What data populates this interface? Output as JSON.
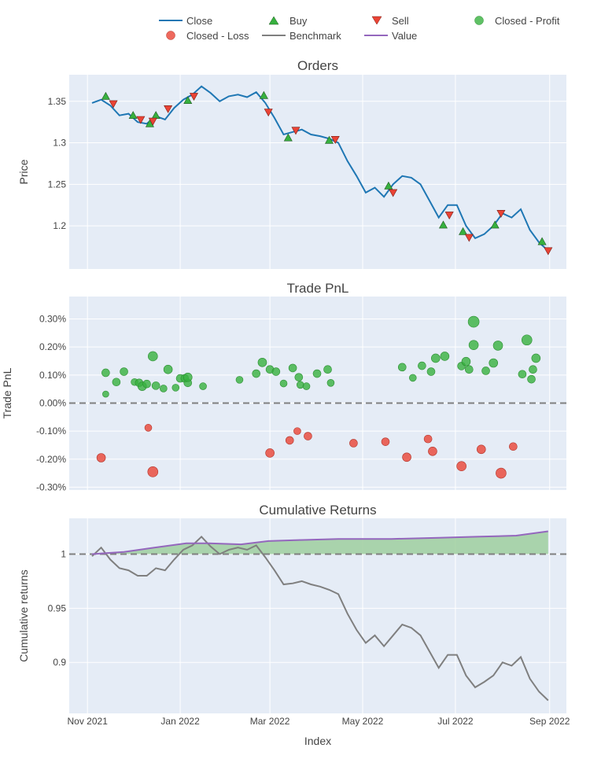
{
  "legend": {
    "close": "Close",
    "buy": "Buy",
    "sell": "Sell",
    "closed_profit": "Closed - Profit",
    "closed_loss": "Closed - Loss",
    "benchmark": "Benchmark",
    "value": "Value"
  },
  "colors": {
    "close": "#1f77b4",
    "buy": "#37b13f",
    "sell": "#ea4335",
    "profit": "#37b13f",
    "loss": "#ea4335",
    "benchmark": "#7f7f7f",
    "value": "#9467bd",
    "plot_bg": "#e5ecf6",
    "fill": "#9fcf9f"
  },
  "xaxis": {
    "title": "Index",
    "ticks": [
      {
        "date": "2021-11-01",
        "label": "Nov 2021"
      },
      {
        "date": "2022-01-01",
        "label": "Jan 2022"
      },
      {
        "date": "2022-03-01",
        "label": "Mar 2022"
      },
      {
        "date": "2022-05-01",
        "label": "May 2022"
      },
      {
        "date": "2022-07-01",
        "label": "Jul 2022"
      },
      {
        "date": "2022-09-01",
        "label": "Sep 2022"
      }
    ]
  },
  "chart_data": [
    {
      "type": "line",
      "title": "Orders",
      "ylabel": "Price",
      "ylim": [
        1.148,
        1.382
      ],
      "yticks": [
        {
          "value": 1.2,
          "label": "1.2"
        },
        {
          "value": 1.25,
          "label": "1.25"
        },
        {
          "value": 1.3,
          "label": "1.3"
        },
        {
          "value": 1.35,
          "label": "1.35"
        }
      ],
      "series": [
        {
          "name": "Close",
          "kind": "line",
          "color": "#1f77b4",
          "x": [
            "2021-11-04",
            "2021-11-10",
            "2021-11-16",
            "2021-11-22",
            "2021-11-28",
            "2021-12-04",
            "2021-12-10",
            "2021-12-16",
            "2021-12-22",
            "2021-12-28",
            "2022-01-03",
            "2022-01-09",
            "2022-01-15",
            "2022-01-21",
            "2022-01-27",
            "2022-02-02",
            "2022-02-08",
            "2022-02-14",
            "2022-02-20",
            "2022-02-26",
            "2022-03-04",
            "2022-03-10",
            "2022-03-16",
            "2022-03-22",
            "2022-03-28",
            "2022-04-03",
            "2022-04-09",
            "2022-04-15",
            "2022-04-21",
            "2022-04-27",
            "2022-05-03",
            "2022-05-09",
            "2022-05-15",
            "2022-05-21",
            "2022-05-27",
            "2022-06-02",
            "2022-06-08",
            "2022-06-14",
            "2022-06-20",
            "2022-06-26",
            "2022-07-02",
            "2022-07-08",
            "2022-07-14",
            "2022-07-20",
            "2022-07-26",
            "2022-08-01",
            "2022-08-07",
            "2022-08-13",
            "2022-08-19",
            "2022-08-25",
            "2022-08-31"
          ],
          "y": [
            1.348,
            1.352,
            1.345,
            1.333,
            1.335,
            1.325,
            1.323,
            1.332,
            1.328,
            1.342,
            1.352,
            1.358,
            1.368,
            1.36,
            1.35,
            1.356,
            1.358,
            1.355,
            1.361,
            1.348,
            1.33,
            1.31,
            1.313,
            1.316,
            1.31,
            1.308,
            1.305,
            1.3,
            1.278,
            1.26,
            1.24,
            1.246,
            1.235,
            1.25,
            1.26,
            1.258,
            1.25,
            1.23,
            1.21,
            1.225,
            1.225,
            1.2,
            1.185,
            1.19,
            1.2,
            1.215,
            1.21,
            1.22,
            1.195,
            1.18,
            1.17
          ]
        },
        {
          "name": "Buy",
          "kind": "markers",
          "symbol": "triangle-up",
          "color": "#37b13f",
          "x": [
            "2021-11-13",
            "2021-12-01",
            "2021-12-12",
            "2021-12-16",
            "2022-01-06",
            "2022-02-25",
            "2022-03-13",
            "2022-04-09",
            "2022-05-18",
            "2022-06-23",
            "2022-07-06",
            "2022-07-27",
            "2022-08-27"
          ],
          "y": [
            1.356,
            1.333,
            1.323,
            1.333,
            1.351,
            1.357,
            1.306,
            1.303,
            1.248,
            1.201,
            1.193,
            1.201,
            1.181
          ]
        },
        {
          "name": "Sell",
          "kind": "markers",
          "symbol": "triangle-down",
          "color": "#ea4335",
          "x": [
            "2021-11-18",
            "2021-12-06",
            "2021-12-14",
            "2021-12-24",
            "2022-01-10",
            "2022-02-28",
            "2022-03-18",
            "2022-04-13",
            "2022-05-21",
            "2022-06-27",
            "2022-07-10",
            "2022-07-31",
            "2022-08-31"
          ],
          "y": [
            1.347,
            1.328,
            1.326,
            1.341,
            1.356,
            1.337,
            1.315,
            1.304,
            1.24,
            1.213,
            1.186,
            1.215,
            1.17
          ]
        },
        {
          "name": "Closed - Profit",
          "kind": "markers",
          "symbol": "circle",
          "color": "#37b13f",
          "x": [],
          "y": []
        },
        {
          "name": "Closed - Loss",
          "kind": "markers",
          "symbol": "circle",
          "color": "#ea4335",
          "x": [],
          "y": []
        }
      ]
    },
    {
      "type": "scatter",
      "title": "Trade PnL",
      "ylabel": "Trade PnL",
      "ylim": [
        -0.0031,
        0.0038
      ],
      "yticks": [
        {
          "value": -0.003,
          "label": "-0.30%"
        },
        {
          "value": -0.002,
          "label": "-0.20%"
        },
        {
          "value": -0.001,
          "label": "-0.10%"
        },
        {
          "value": 0.0,
          "label": "0.00%"
        },
        {
          "value": 0.001,
          "label": "0.10%"
        },
        {
          "value": 0.002,
          "label": "0.20%"
        },
        {
          "value": 0.003,
          "label": "0.30%"
        }
      ],
      "zero_line": 0.0,
      "series": [
        {
          "name": "Closed - Profit",
          "color": "#37b13f",
          "x": [
            "2021-11-13",
            "2021-11-13",
            "2021-11-20",
            "2021-11-25",
            "2021-12-02",
            "2021-12-05",
            "2021-12-07",
            "2021-12-10",
            "2021-12-14",
            "2021-12-16",
            "2021-12-21",
            "2021-12-24",
            "2021-12-29",
            "2022-01-01",
            "2022-01-04",
            "2022-01-06",
            "2022-01-06",
            "2022-01-16",
            "2022-02-09",
            "2022-02-20",
            "2022-02-24",
            "2022-03-01",
            "2022-03-05",
            "2022-03-10",
            "2022-03-16",
            "2022-03-20",
            "2022-03-21",
            "2022-03-25",
            "2022-04-01",
            "2022-04-08",
            "2022-04-10",
            "2022-05-27",
            "2022-06-03",
            "2022-06-09",
            "2022-06-15",
            "2022-06-18",
            "2022-06-24",
            "2022-07-05",
            "2022-07-08",
            "2022-07-10",
            "2022-07-13",
            "2022-07-13",
            "2022-07-21",
            "2022-07-26",
            "2022-07-29",
            "2022-08-14",
            "2022-08-17",
            "2022-08-20",
            "2022-08-21",
            "2022-08-23"
          ],
          "y": [
            0.00032,
            0.00108,
            0.00075,
            0.00112,
            0.00075,
            0.00072,
            0.0006,
            0.00068,
            0.00167,
            0.00062,
            0.00052,
            0.0012,
            0.00055,
            0.00088,
            0.00088,
            0.00072,
            0.00092,
            0.0006,
            0.00083,
            0.00105,
            0.00145,
            0.0012,
            0.00112,
            0.0007,
            0.00125,
            0.00092,
            0.00065,
            0.0006,
            0.00105,
            0.0012,
            0.00072,
            0.00128,
            0.0009,
            0.00133,
            0.00112,
            0.0016,
            0.00167,
            0.00132,
            0.00148,
            0.0012,
            0.0029,
            0.00207,
            0.00115,
            0.00143,
            0.00205,
            0.00103,
            0.00225,
            0.00085,
            0.0012,
            0.0016
          ],
          "size": [
            6,
            8,
            8,
            8,
            7,
            8,
            9,
            8,
            10,
            8,
            7,
            9,
            7,
            8,
            8,
            8,
            9,
            7,
            7,
            8,
            9,
            8,
            8,
            7,
            8,
            8,
            7,
            7,
            8,
            8,
            7,
            8,
            7,
            8,
            8,
            9,
            9,
            8,
            9,
            8,
            12,
            10,
            8,
            9,
            10,
            8,
            11,
            8,
            8,
            9
          ]
        },
        {
          "name": "Closed - Loss",
          "color": "#ea4335",
          "x": [
            "2021-11-10",
            "2021-12-11",
            "2021-12-14",
            "2022-03-01",
            "2022-03-14",
            "2022-03-19",
            "2022-03-26",
            "2022-04-25",
            "2022-05-16",
            "2022-05-30",
            "2022-06-13",
            "2022-06-16",
            "2022-07-05",
            "2022-07-18",
            "2022-07-31",
            "2022-08-08"
          ],
          "y": [
            -0.00195,
            -0.00088,
            -0.00245,
            -0.00178,
            -0.00133,
            -0.001,
            -0.00118,
            -0.00143,
            -0.00138,
            -0.00193,
            -0.00128,
            -0.00172,
            -0.00225,
            -0.00165,
            -0.0025,
            -0.00155
          ],
          "size": [
            9,
            7,
            11,
            9,
            8,
            7,
            8,
            8,
            8,
            9,
            8,
            9,
            10,
            9,
            11,
            8
          ]
        }
      ]
    },
    {
      "type": "area",
      "title": "Cumulative Returns",
      "ylabel": "Cumulative returns",
      "ylim": [
        0.853,
        1.033
      ],
      "yticks": [
        {
          "value": 0.9,
          "label": "0.9"
        },
        {
          "value": 0.95,
          "label": "0.95"
        },
        {
          "value": 1.0,
          "label": "1"
        }
      ],
      "baseline": 1.0,
      "series": [
        {
          "name": "Benchmark",
          "color": "#7f7f7f",
          "x": [
            "2021-11-04",
            "2021-11-10",
            "2021-11-16",
            "2021-11-22",
            "2021-11-28",
            "2021-12-04",
            "2021-12-10",
            "2021-12-16",
            "2021-12-22",
            "2021-12-28",
            "2022-01-03",
            "2022-01-09",
            "2022-01-15",
            "2022-01-21",
            "2022-01-27",
            "2022-02-02",
            "2022-02-08",
            "2022-02-14",
            "2022-02-20",
            "2022-02-26",
            "2022-03-04",
            "2022-03-10",
            "2022-03-16",
            "2022-03-22",
            "2022-03-28",
            "2022-04-03",
            "2022-04-09",
            "2022-04-15",
            "2022-04-21",
            "2022-04-27",
            "2022-05-03",
            "2022-05-09",
            "2022-05-15",
            "2022-05-21",
            "2022-05-27",
            "2022-06-02",
            "2022-06-08",
            "2022-06-14",
            "2022-06-20",
            "2022-06-26",
            "2022-07-02",
            "2022-07-08",
            "2022-07-14",
            "2022-07-20",
            "2022-07-26",
            "2022-08-01",
            "2022-08-07",
            "2022-08-13",
            "2022-08-19",
            "2022-08-25",
            "2022-08-31"
          ],
          "y": [
            0.998,
            1.006,
            0.995,
            0.987,
            0.985,
            0.98,
            0.98,
            0.987,
            0.985,
            0.995,
            1.004,
            1.008,
            1.016,
            1.007,
            1.0,
            1.004,
            1.006,
            1.004,
            1.008,
            0.997,
            0.985,
            0.972,
            0.973,
            0.975,
            0.972,
            0.97,
            0.967,
            0.963,
            0.945,
            0.93,
            0.918,
            0.925,
            0.915,
            0.925,
            0.935,
            0.932,
            0.925,
            0.91,
            0.895,
            0.907,
            0.907,
            0.888,
            0.877,
            0.882,
            0.888,
            0.9,
            0.897,
            0.905,
            0.885,
            0.873,
            0.865
          ]
        },
        {
          "name": "Value",
          "color": "#9467bd",
          "x": [
            "2021-11-04",
            "2021-11-25",
            "2021-12-15",
            "2022-01-05",
            "2022-01-20",
            "2022-02-10",
            "2022-02-28",
            "2022-03-20",
            "2022-04-15",
            "2022-05-20",
            "2022-06-20",
            "2022-07-15",
            "2022-08-10",
            "2022-08-31"
          ],
          "y": [
            1.0,
            1.002,
            1.006,
            1.01,
            1.01,
            1.009,
            1.012,
            1.013,
            1.014,
            1.014,
            1.015,
            1.016,
            1.017,
            1.021
          ]
        }
      ]
    }
  ]
}
